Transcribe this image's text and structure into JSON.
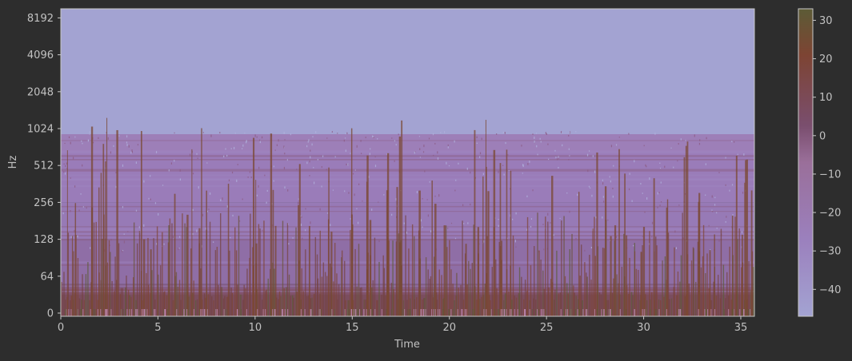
{
  "chart_data": {
    "type": "heatmap",
    "title": "",
    "xlabel": "Time",
    "ylabel": "Hz",
    "x_ticks": [
      0,
      5,
      10,
      15,
      20,
      25,
      30,
      35
    ],
    "x_range": [
      0,
      35.7
    ],
    "y_scale": "symlog",
    "y_ticks": [
      "0",
      "64",
      "128",
      "256",
      "512",
      "1024",
      "2048",
      "4096",
      "8192"
    ],
    "y_energy_cutoff_hz": 1000,
    "colorbar": {
      "ticks": [
        30,
        20,
        10,
        0,
        -10,
        -20,
        -30,
        -40
      ],
      "range": [
        -47,
        33
      ],
      "unit": "dB",
      "colors": {
        "min": "#a3a3d2",
        "low": "#9b80bd",
        "mid": "#7a4e6e",
        "high": "#7d4433",
        "max": "#5c5b36"
      }
    },
    "colors": {
      "background": "#2d2d2d",
      "axis": "#c2c2c2",
      "silent_region": "#a3a3d2"
    }
  }
}
